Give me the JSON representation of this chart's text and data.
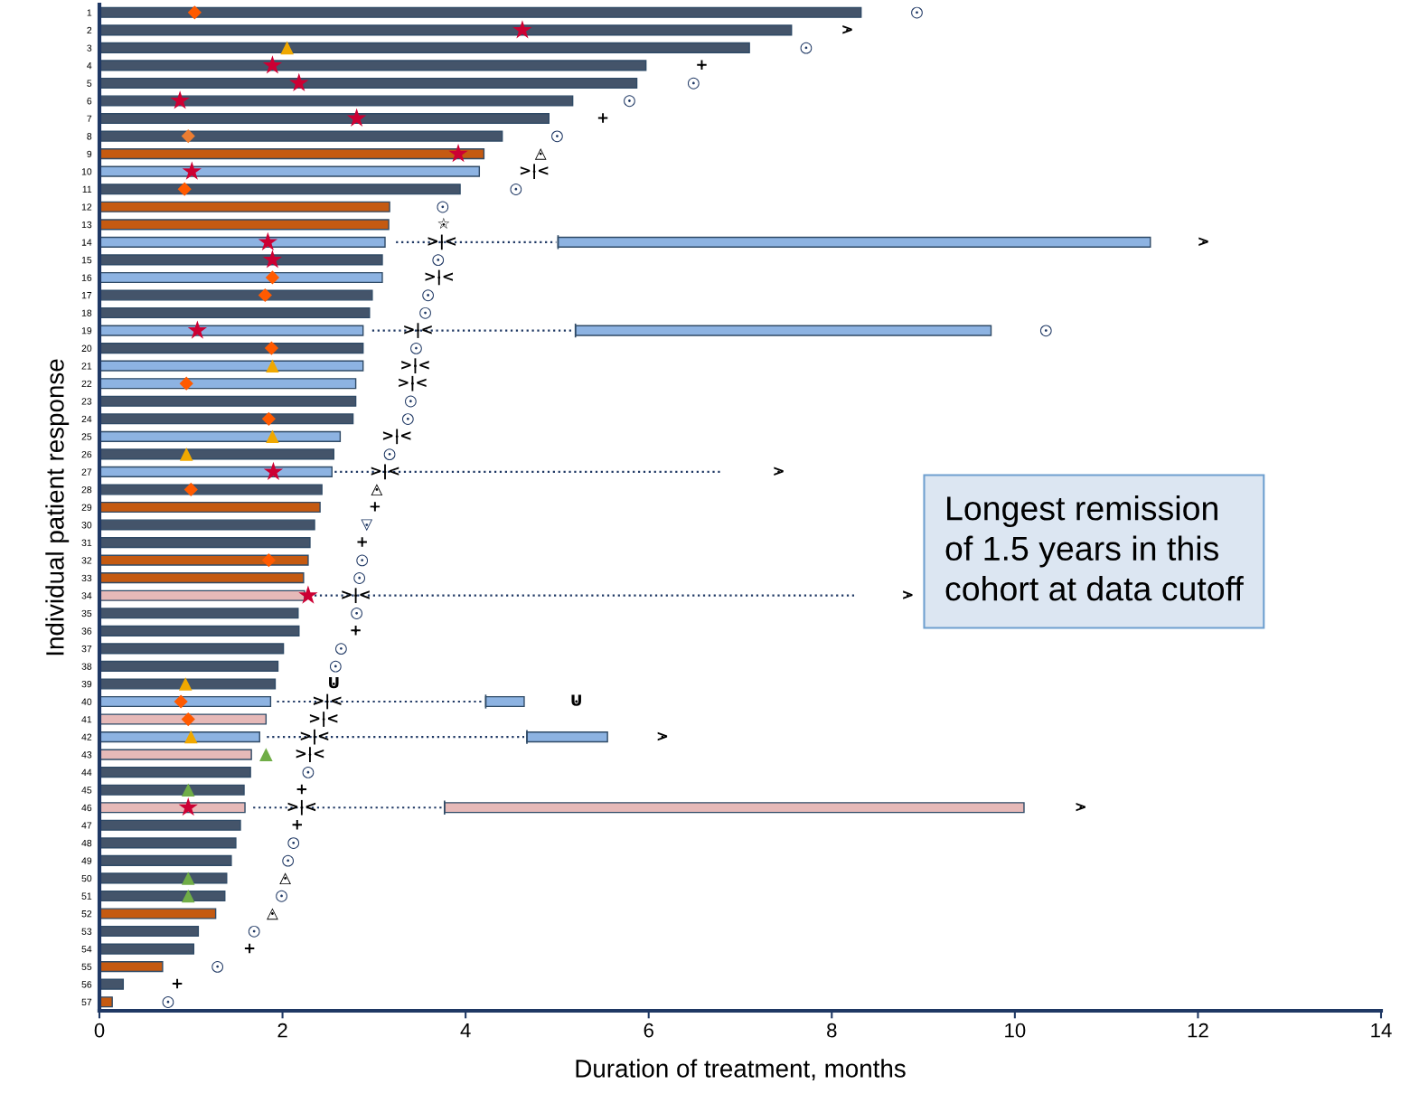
{
  "chart_data": {
    "type": "bar",
    "orientation": "horizontal",
    "categories": [
      "1",
      "2",
      "3",
      "4",
      "5",
      "6",
      "7",
      "8",
      "9",
      "10",
      "11",
      "12",
      "13",
      "14",
      "15",
      "16",
      "17",
      "18",
      "19",
      "20",
      "21",
      "22",
      "23",
      "24",
      "25",
      "26",
      "27",
      "28",
      "29",
      "30",
      "31",
      "32",
      "33",
      "34",
      "35",
      "36",
      "37",
      "38",
      "39",
      "40",
      "41",
      "42",
      "43",
      "44",
      "45",
      "46",
      "47",
      "48",
      "49",
      "50",
      "51",
      "52",
      "53",
      "54",
      "55",
      "56",
      "57"
    ],
    "series": [
      {
        "values": [
          8.32,
          7.56,
          7.1,
          5.97,
          5.87,
          5.17,
          4.91,
          4.4,
          4.2,
          4.15,
          3.94,
          3.17,
          3.16,
          3.12,
          3.09,
          3.09,
          2.98,
          2.95,
          2.88,
          2.88,
          2.88,
          2.8,
          2.8,
          2.77,
          2.63,
          2.56,
          2.54,
          2.43,
          2.41,
          2.35,
          2.3,
          2.28,
          2.23,
          2.24,
          2.17,
          2.18,
          2.01,
          1.95,
          1.92,
          1.87,
          1.82,
          1.75,
          1.66,
          1.65,
          1.58,
          1.59,
          1.54,
          1.49,
          1.44,
          1.39,
          1.37,
          1.27,
          1.08,
          1.03,
          0.69,
          0.26,
          0.14
        ],
        "colors": [
          "#44546a",
          "#44546a",
          "#44546a",
          "#44546a",
          "#44546a",
          "#44546a",
          "#44546a",
          "#44546a",
          "#c55a11",
          "#8db3e2",
          "#44546a",
          "#c55a11",
          "#c55a11",
          "#8db3e2",
          "#44546a",
          "#8db3e2",
          "#44546a",
          "#44546a",
          "#8db3e2",
          "#44546a",
          "#8db3e2",
          "#8db3e2",
          "#44546a",
          "#44546a",
          "#8db3e2",
          "#44546a",
          "#8db3e2",
          "#44546a",
          "#c55a11",
          "#44546a",
          "#44546a",
          "#c55a11",
          "#c55a11",
          "#e6b9b8",
          "#44546a",
          "#44546a",
          "#44546a",
          "#44546a",
          "#44546a",
          "#8db3e2",
          "#e6b9b8",
          "#8db3e2",
          "#e6b9b8",
          "#44546a",
          "#44546a",
          "#e6b9b8",
          "#44546a",
          "#44546a",
          "#44546a",
          "#44546a",
          "#44546a",
          "#c55a11",
          "#44546a",
          "#44546a",
          "#c55a11",
          "#44546a",
          "#c55a11"
        ]
      },
      {
        "type": "line",
        "line_style": "dotted",
        "color": "#1f3864",
        "x": [
          "14",
          "14"
        ],
        "values": [
          3.24,
          4.99
        ]
      },
      {
        "type": "line",
        "line_style": "dotted",
        "color": "#1f3864",
        "x": [
          "19",
          "19"
        ],
        "values": [
          2.98,
          5.16
        ]
      },
      {
        "type": "line",
        "line_style": "dotted",
        "color": "#1f3864",
        "x": [
          "27",
          "27"
        ],
        "values": [
          2.57,
          6.81
        ]
      },
      {
        "type": "line",
        "line_style": "dotted",
        "color": "#1f3864",
        "x": [
          "34",
          "34"
        ],
        "values": [
          2.35,
          8.25
        ]
      },
      {
        "type": "line",
        "line_style": "dotted",
        "color": "#1f3864",
        "x": [
          "40",
          "40"
        ],
        "values": [
          1.94,
          4.18
        ]
      },
      {
        "type": "line",
        "line_style": "dotted",
        "color": "#1f3864",
        "x": [
          "42",
          "42"
        ],
        "values": [
          1.83,
          4.64
        ]
      },
      {
        "type": "line",
        "line_style": "dotted",
        "color": "#1f3864",
        "x": [
          "46",
          "46"
        ],
        "values": [
          1.68,
          3.75
        ]
      },
      {
        "type": "bar",
        "base": [
          null,
          null,
          null,
          null,
          null,
          null,
          null,
          null,
          null,
          null,
          null,
          null,
          null,
          5.01,
          null,
          null,
          null,
          null,
          5.2,
          null,
          null,
          null,
          null,
          null,
          null,
          null,
          null,
          null,
          null,
          null,
          null,
          null,
          null,
          null,
          null,
          null,
          null,
          null,
          null,
          4.22,
          null,
          4.67,
          null,
          null,
          null,
          3.77,
          null,
          null,
          null,
          null,
          null,
          null,
          null,
          null,
          null,
          null,
          null
        ],
        "values": [
          null,
          null,
          null,
          null,
          null,
          null,
          null,
          null,
          null,
          null,
          null,
          null,
          null,
          6.47,
          null,
          null,
          null,
          null,
          4.54,
          null,
          null,
          null,
          null,
          null,
          null,
          null,
          null,
          null,
          null,
          null,
          null,
          null,
          null,
          null,
          null,
          null,
          null,
          null,
          null,
          0.42,
          null,
          0.88,
          null,
          null,
          null,
          6.33,
          null,
          null,
          null,
          null,
          null,
          null,
          null,
          null,
          null,
          null,
          null
        ],
        "colors": [
          null,
          null,
          null,
          null,
          null,
          null,
          null,
          null,
          null,
          null,
          null,
          null,
          null,
          "#8db3e2",
          null,
          null,
          null,
          null,
          "#8db3e2",
          null,
          null,
          null,
          null,
          null,
          null,
          null,
          null,
          null,
          null,
          null,
          null,
          null,
          null,
          null,
          null,
          null,
          null,
          null,
          null,
          "#8db3e2",
          null,
          "#8db3e2",
          null,
          null,
          null,
          "#e6b9b8",
          null,
          null,
          null,
          null,
          null,
          null,
          null,
          null,
          null,
          null,
          null
        ]
      },
      {
        "type": "scatter",
        "marker": "circle",
        "x": [
          "1",
          "2",
          "3",
          "4",
          "5",
          "6",
          "7",
          "8",
          "9",
          "10",
          "11",
          "12",
          "13",
          "14",
          "14",
          "15",
          "16",
          "17",
          "18",
          "19",
          "19",
          "20",
          "21",
          "22",
          "23",
          "24",
          "25",
          "26",
          "27",
          "27",
          "28",
          "29",
          "30",
          "31",
          "32",
          "33",
          "34",
          "34",
          "35",
          "36",
          "37",
          "38",
          "39",
          "40",
          "40",
          "41",
          "42",
          "42",
          "43",
          "44",
          "45",
          "46",
          "46",
          "47",
          "48",
          "49",
          "50",
          "51",
          "52",
          "53",
          "54",
          "55",
          "56",
          "57"
        ],
        "values": [
          8.93,
          8.17,
          7.72,
          6.58,
          6.49,
          5.79,
          5.5,
          5.0,
          4.82,
          4.75,
          4.55,
          3.75,
          3.76,
          3.74,
          12.06,
          3.7,
          3.71,
          3.59,
          3.56,
          3.48,
          10.34,
          3.46,
          3.45,
          3.42,
          3.4,
          3.37,
          3.25,
          3.17,
          3.12,
          7.42,
          3.03,
          3.01,
          2.92,
          2.87,
          2.87,
          2.84,
          2.8,
          8.83,
          2.81,
          2.8,
          2.64,
          2.58,
          2.56,
          2.49,
          5.21,
          2.45,
          2.35,
          6.15,
          2.3,
          2.28,
          2.21,
          2.21,
          10.72,
          2.16,
          2.12,
          2.06,
          2.03,
          1.99,
          1.89,
          1.69,
          1.64,
          1.29,
          0.85,
          0.75
        ],
        "value_labels": [
          "○",
          ">",
          "○",
          "+",
          "○",
          "○",
          "+",
          "○",
          "△",
          ">|<",
          "○",
          "○",
          "☆",
          ">|<",
          ">",
          "○",
          ">|<",
          "○",
          "○",
          ">|<",
          "○",
          "○",
          ">|<",
          ">|<",
          "○",
          "○",
          ">|<",
          "○",
          ">|<",
          ">",
          "△",
          "+",
          "▽",
          "+",
          "○",
          "○",
          ">|<",
          ">",
          "○",
          "+",
          "○",
          "○",
          "U",
          ">|<",
          "U",
          ">|<",
          ">|<",
          ">",
          ">|<",
          "○",
          "+",
          ">|<",
          ">",
          "+",
          "○",
          "○",
          "△",
          "○",
          "△",
          "○",
          "+",
          "○",
          "+",
          "○"
        ],
        "colors": [
          "#1f3864",
          "#000000",
          "#1f3864",
          "#000000",
          "#1f3864",
          "#1f3864",
          "#000000",
          "#1f3864",
          "#000000",
          "#000000",
          "#1f3864",
          "#1f3864",
          "#000000",
          "#000000",
          "#000000",
          "#1f3864",
          "#000000",
          "#1f3864",
          "#1f3864",
          "#000000",
          "#1f3864",
          "#1f3864",
          "#000000",
          "#000000",
          "#1f3864",
          "#1f3864",
          "#000000",
          "#1f3864",
          "#000000",
          "#000000",
          "#000000",
          "#000000",
          "#1f3864",
          "#000000",
          "#1f3864",
          "#1f3864",
          "#000000",
          "#000000",
          "#1f3864",
          "#000000",
          "#1f3864",
          "#1f3864",
          "#000000",
          "#000000",
          "#000000",
          "#000000",
          "#000000",
          "#000000",
          "#000000",
          "#1f3864",
          "#000000",
          "#000000",
          "#000000",
          "#000000",
          "#1f3864",
          "#1f3864",
          "#000000",
          "#1f3864",
          "#000000",
          "#1f3864",
          "#000000",
          "#1f3864",
          "#000000",
          "#1f3864"
        ]
      },
      {
        "type": "scatter",
        "marker": "star",
        "color": "#cc0033",
        "x": [
          "2",
          "4",
          "5",
          "6",
          "7",
          "9",
          "10",
          "14",
          "15",
          "19",
          "27",
          "34",
          "46"
        ],
        "values": [
          4.62,
          1.89,
          2.18,
          0.88,
          2.81,
          3.92,
          1.01,
          1.84,
          1.89,
          1.07,
          1.9,
          2.28,
          0.97
        ]
      },
      {
        "type": "scatter",
        "marker": "diamond",
        "colors": [
          "#ff5a00",
          "#ed7d31",
          "#ff5a00",
          "#ff5a00",
          "#ff5a00",
          "#ff5a00",
          "#ff5a00",
          "#ff5a00",
          "#ff5a00",
          "#ff5a00",
          "#ff5a00",
          "#ff5a00"
        ],
        "x": [
          "1",
          "8",
          "11",
          "16",
          "17",
          "20",
          "22",
          "24",
          "28",
          "32",
          "40",
          "41"
        ],
        "values": [
          1.04,
          0.97,
          0.93,
          1.89,
          1.81,
          1.88,
          0.95,
          1.85,
          1.0,
          1.85,
          0.89,
          0.97
        ]
      },
      {
        "type": "scatter",
        "marker": "triangle",
        "colors": [
          "#f0a800",
          "#f0a800",
          "#f0a800",
          "#f0a800",
          "#f0a800",
          "#f0a800",
          "#70ad47",
          "#70ad47",
          "#70ad47",
          "#70ad47"
        ],
        "x": [
          "3",
          "21",
          "25",
          "26",
          "39",
          "42",
          "43",
          "45",
          "50",
          "51"
        ],
        "values": [
          2.05,
          1.89,
          1.89,
          0.95,
          0.94,
          1.0,
          1.82,
          0.97,
          0.97,
          0.97
        ]
      }
    ],
    "xlim": [
      0,
      14
    ],
    "xticks": [
      0,
      2,
      4,
      6,
      8,
      10,
      12,
      14
    ],
    "xlabel": "Duration of treatment, months",
    "ylabel": "Individual patient response",
    "annotations": [
      "Longest remission\nof 1.5 years in this\ncohort at data cutoff"
    ]
  }
}
